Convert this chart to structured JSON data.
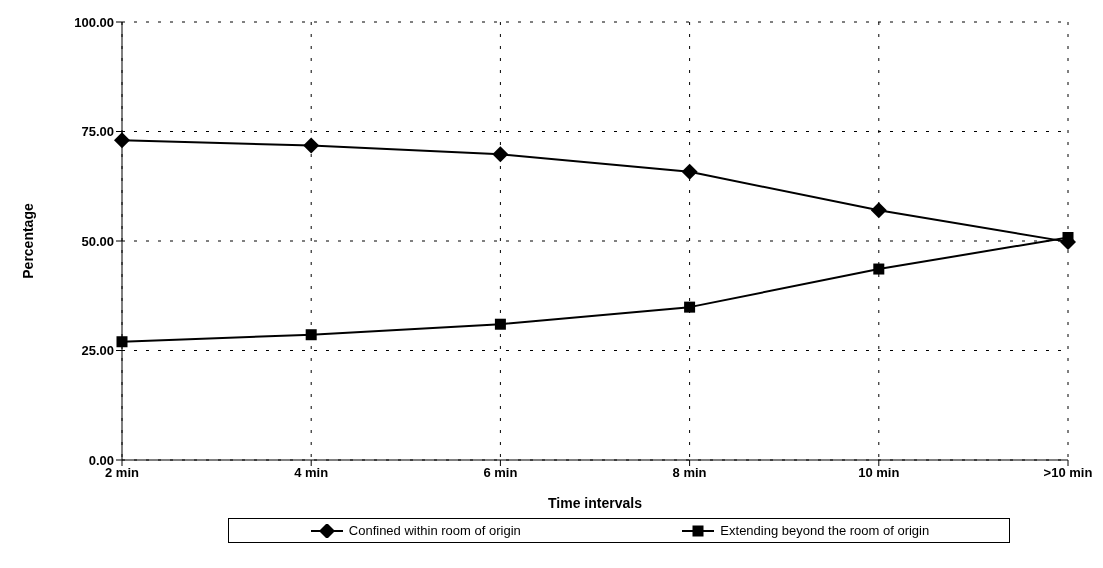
{
  "chart_data": {
    "type": "line",
    "xlabel": "Time intervals",
    "ylabel": "Percentage",
    "categories": [
      "2 min",
      "4 min",
      "6 min",
      "8 min",
      "10 min",
      ">10 min"
    ],
    "series": [
      {
        "name": "Confined within room of origin",
        "color": "#000000",
        "marker": "diamond",
        "values": [
          73,
          71.8,
          69.8,
          65.8,
          57,
          49.8
        ]
      },
      {
        "name": "Extending beyond the room of origin",
        "color": "#000000",
        "marker": "square",
        "values": [
          27,
          28.6,
          31,
          34.9,
          43.6,
          50.8
        ]
      }
    ],
    "ylim": [
      0,
      100
    ],
    "yticks": [
      {
        "value": 0,
        "label": "0.00"
      },
      {
        "value": 25,
        "label": "25.00"
      },
      {
        "value": 50,
        "label": "50.00"
      },
      {
        "value": 75,
        "label": "75.00"
      },
      {
        "value": 100,
        "label": "100.00"
      }
    ],
    "grid": true,
    "line_style": "solid",
    "legend": "bottom"
  }
}
